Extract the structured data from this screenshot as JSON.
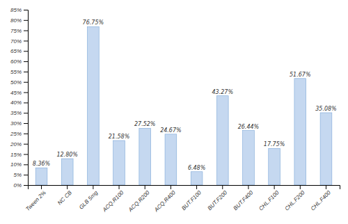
{
  "chart_data": {
    "type": "bar",
    "categories": [
      "Tween 2%",
      "NC CB",
      "GLB 5mg",
      "ACQ.R100",
      "ACQ.R200",
      "ACQ.R400",
      "BUT.F100",
      "BUT.F200",
      "BUT.F400",
      "CHL.F100",
      "CHL.F200",
      "CHL.F400"
    ],
    "values": [
      8.36,
      12.8,
      76.75,
      21.58,
      27.52,
      24.67,
      6.48,
      43.27,
      26.44,
      17.75,
      51.67,
      35.08
    ],
    "value_labels": [
      "8.36%",
      "12.80%",
      "76.75%",
      "21.58%",
      "27.52%",
      "24.67%",
      "6.48%",
      "43.27%",
      "26.44%",
      "17.75%",
      "51.67%",
      "35.08%"
    ],
    "data_labels": true,
    "color": "#c5d8f0",
    "ylim": [
      0,
      85
    ],
    "yticks": [
      {
        "value": 0,
        "label": "0%"
      },
      {
        "value": 5,
        "label": "5%"
      },
      {
        "value": 10,
        "label": "10%"
      },
      {
        "value": 15,
        "label": "15%"
      },
      {
        "value": 20,
        "label": "20%"
      },
      {
        "value": 25,
        "label": "25%"
      },
      {
        "value": 30,
        "label": "30%"
      },
      {
        "value": 35,
        "label": "35%"
      },
      {
        "value": 40,
        "label": "40%"
      },
      {
        "value": 45,
        "label": "45%"
      },
      {
        "value": 50,
        "label": "50%"
      },
      {
        "value": 55,
        "label": "55%"
      },
      {
        "value": 60,
        "label": "60%"
      },
      {
        "value": 65,
        "label": "65%"
      },
      {
        "value": 70,
        "label": "70%"
      },
      {
        "value": 75,
        "label": "75%"
      },
      {
        "value": 80,
        "label": "80%"
      },
      {
        "value": 85,
        "label": "85%"
      }
    ],
    "grid": false
  }
}
